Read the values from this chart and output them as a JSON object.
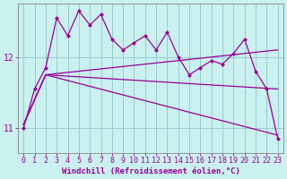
{
  "xlabel": "Windchill (Refroidissement éolien,°C)",
  "ylabel": "",
  "bg_color": "#caf0f0",
  "line_color": "#990099",
  "grid_color": "#99cccc",
  "xlim": [
    -0.5,
    23.5
  ],
  "ylim": [
    10.65,
    12.75
  ],
  "yticks": [
    11,
    12
  ],
  "xticks": [
    0,
    1,
    2,
    3,
    4,
    5,
    6,
    7,
    8,
    9,
    10,
    11,
    12,
    13,
    14,
    15,
    16,
    17,
    18,
    19,
    20,
    21,
    22,
    23
  ],
  "series1_x": [
    0,
    1,
    2,
    3,
    4,
    5,
    6,
    7,
    8,
    9,
    10,
    11,
    12,
    13,
    14,
    15,
    16,
    17,
    18,
    19,
    20,
    21,
    22,
    23
  ],
  "series1_y": [
    11.0,
    11.55,
    11.85,
    12.55,
    12.3,
    12.65,
    12.45,
    12.6,
    12.25,
    12.1,
    12.2,
    12.3,
    12.1,
    12.35,
    12.0,
    11.75,
    11.85,
    11.95,
    11.9,
    12.05,
    12.25,
    11.8,
    11.55,
    10.85
  ],
  "series2_x": [
    0,
    2,
    23
  ],
  "series2_y": [
    11.05,
    11.75,
    12.1
  ],
  "series3_x": [
    0,
    2,
    23
  ],
  "series3_y": [
    11.05,
    11.75,
    11.55
  ],
  "series4_x": [
    0,
    2,
    23
  ],
  "series4_y": [
    11.05,
    11.75,
    10.9
  ],
  "marker": "D",
  "markersize": 2.5,
  "linewidth": 0.9,
  "label_fontsize": 6.5,
  "tick_fontsize": 6
}
